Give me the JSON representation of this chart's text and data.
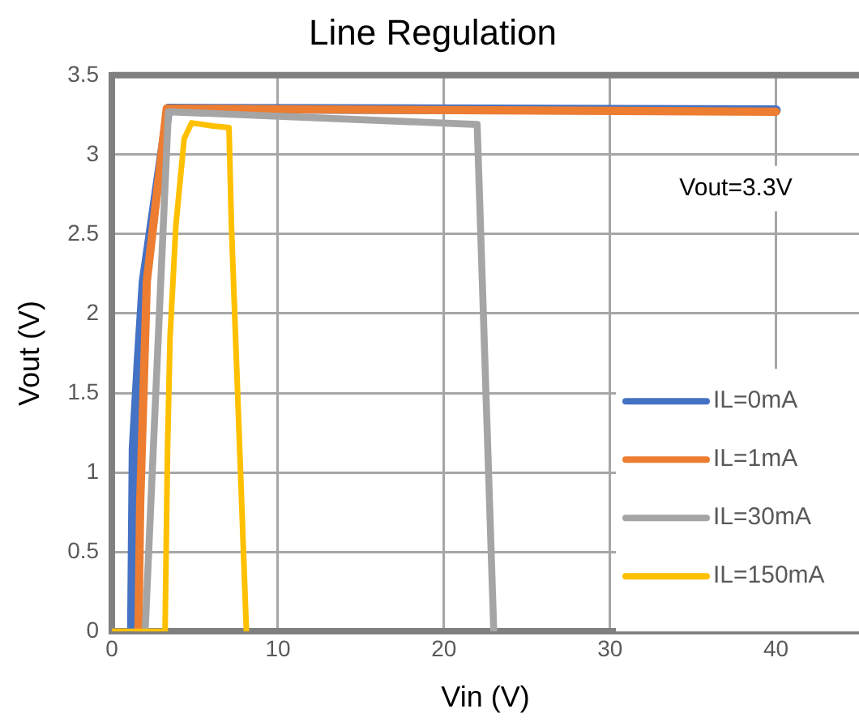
{
  "chart_data": {
    "type": "line",
    "title": "Line Regulation",
    "xlabel": "Vin (V)",
    "ylabel": "Vout (V)",
    "xlim": [
      0,
      45
    ],
    "xticks": [
      0,
      10,
      20,
      30,
      40
    ],
    "ylim": [
      0,
      3.5
    ],
    "yticks": [
      0,
      0.5,
      1,
      1.5,
      2,
      2.5,
      3,
      3.5
    ],
    "grid": true,
    "legend": "bottom right",
    "marker": "none",
    "line_style": "solid",
    "annotations": [
      "Vout=3.3V"
    ],
    "series": [
      {
        "name": "IL=0mA",
        "color": "#4472c4",
        "x": [
          1.2,
          1.3,
          1.6,
          1.9,
          3.4,
          40
        ],
        "values": [
          0,
          1.15,
          1.7,
          2.2,
          3.29,
          3.28
        ]
      },
      {
        "name": "IL=1mA",
        "color": "#ed7d31",
        "x": [
          1.6,
          1.7,
          2.1,
          3.3,
          40
        ],
        "values": [
          0,
          0.8,
          2.2,
          3.29,
          3.27
        ]
      },
      {
        "name": "IL=30mA",
        "color": "#a5a5a5",
        "x": [
          2.0,
          3.4,
          22.0,
          23.0
        ],
        "values": [
          0,
          3.27,
          3.19,
          0
        ]
      },
      {
        "name": "IL=150mA",
        "color": "#ffc000",
        "x": [
          0,
          1.1,
          3.2,
          3.35,
          3.5,
          3.85,
          4.35,
          4.8,
          6.1,
          7.05,
          7.2,
          8.1
        ],
        "values": [
          0,
          0,
          0,
          1.15,
          1.85,
          2.55,
          3.1,
          3.2,
          3.18,
          3.17,
          2.55,
          0
        ]
      }
    ]
  }
}
